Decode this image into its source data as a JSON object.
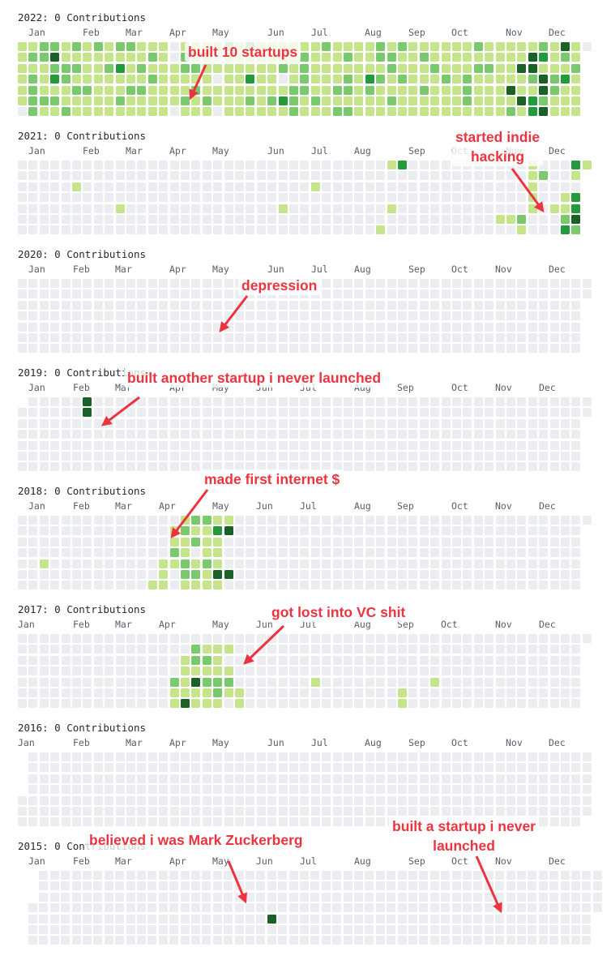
{
  "colors": {
    "empty": "#ebedf0",
    "level1": "#c6e48b",
    "level2": "#7bc96f",
    "level3": "#239a3b",
    "level4": "#196127",
    "annotation": "#ec3340"
  },
  "years": [
    {
      "title": "2022: 0 Contributions",
      "months": [
        "Jan",
        "Feb",
        "Mar",
        "Apr",
        "May",
        "Jun",
        "Jul",
        "Aug",
        "Sep",
        "Oct",
        "Nov",
        "Dec"
      ],
      "weeks": [
        "1111110",
        "1212222",
        "2211121",
        "2423121",
        "1122112",
        "2121211",
        "1111211",
        "2111111",
        "1121111",
        "2131121",
        "2111211",
        "1121211",
        "1212111",
        "1111111",
        "0011110",
        "1221121",
        "1121211",
        "1111121",
        "1010110",
        "2111111",
        "1111111",
        "2113121",
        "1111111",
        "1111121",
        "1120131",
        "1111222",
        "1222211",
        "1111121",
        "2111111",
        "1111212",
        "1212212",
        "1111111",
        "1113211",
        "2212111",
        "1221121",
        "2112111",
        "1111111",
        "1211211",
        "1121111",
        "1112111",
        "1111111",
        "1112221",
        "2121111",
        "1121111",
        "1111111",
        "1111412",
        "1141141",
        "1442133",
        "2314424",
        "1112211",
        "4213111",
        "1121111"
      ],
      "annotations": [
        {
          "lines": [
            "built 10 startups"
          ]
        }
      ]
    },
    {
      "title": "2021: 0 Contributions",
      "months": [
        "Jan",
        "Feb",
        "Mar",
        "Apr",
        "May",
        "Jun",
        "Jul",
        "Aug",
        "Sep",
        "Oct",
        "Nov",
        "Dec"
      ],
      "weeks": [
        "0000000",
        "0000000",
        "0000000",
        "0000000",
        "0000000",
        "0010000",
        "0000000",
        "0000000",
        "0000000",
        "0000100",
        "0000000",
        "0000000",
        "0000000",
        "0000000",
        "0000000",
        "0000000",
        "0000000",
        "0000000",
        "0000000",
        "0000000",
        "0000000",
        "0000000",
        "0000000",
        "0000000",
        "0000100",
        "0000000",
        "0000000",
        "0010000",
        "0000000",
        "0000000",
        "0000000",
        "0000000",
        "0000000",
        "0000001",
        "1000100",
        "3000000",
        "0000000",
        "0000000",
        "0000000",
        "0000000",
        "0000000",
        "0000000",
        "0000000",
        "0000000",
        "0000010",
        "0000010",
        "0000021",
        "1111100",
        "0200000",
        "0000100",
        "0001123",
        "3103342",
        "1011011"
      ],
      "annotations": [
        {
          "lines": [
            "started indie",
            "hacking"
          ]
        }
      ]
    },
    {
      "title": "2020: 0 Contributions",
      "months": [
        "Jan",
        "Feb",
        "Mar",
        "Apr",
        "May",
        "Jun",
        "Jul",
        "Aug",
        "Sep",
        "Oct",
        "Nov",
        "Dec"
      ],
      "weeks": [],
      "annotations": [
        {
          "lines": [
            "depression"
          ]
        }
      ]
    },
    {
      "title": "2019: 0 Contributions",
      "months": [
        "Jan",
        "Feb",
        "Mar",
        "Apr",
        "May",
        "Jun",
        "Jul",
        "Aug",
        "Sep",
        "Oct",
        "Nov",
        "Dec"
      ],
      "weeks": [
        "0000000",
        "0000000",
        "0000000",
        "0000000",
        "0000000",
        "0000000",
        "4400000"
      ],
      "annotations": [
        {
          "lines": [
            "built  another startup i never launched"
          ]
        }
      ]
    },
    {
      "title": "2018: 0 Contributions",
      "months": [
        "Jan",
        "Feb",
        "Mar",
        "Apr",
        "May",
        "Jun",
        "Jul",
        "Aug",
        "Sep",
        "Oct",
        "Nov",
        "Dec"
      ],
      "weeks": [
        "0000000",
        "0000000",
        "0000100",
        "0000000",
        "0000000",
        "0000000",
        "0000000",
        "0000000",
        "0000000",
        "0000000",
        "0000000",
        "0000000",
        "0000001",
        "0000111",
        "0112100",
        "1211221",
        "2120121",
        "2111211",
        "1311141",
        "1400040"
      ],
      "annotations": [
        {
          "lines": [
            "made first internet $"
          ]
        }
      ]
    },
    {
      "title": "2017: 0 Contributions",
      "months": [
        "Jan",
        "Feb",
        "Mar",
        "Apr",
        "May",
        "Jun",
        "Jul",
        "Aug",
        "Sep",
        "Oct",
        "Nov",
        "Dec"
      ],
      "weeks": [
        "0000000",
        "0000000",
        "0000000",
        "0000000",
        "0000000",
        "0000000",
        "0000000",
        "0000000",
        "0000000",
        "0000000",
        "0000000",
        "0000000",
        "0000000",
        "0000000",
        "0000211",
        "0011114",
        "0221411",
        "0121211",
        "0111221",
        "0101210",
        "0000011",
        "0000000",
        "0000000",
        "0000000",
        "0000000",
        "0000000",
        "0000000",
        "0000100",
        "0000000",
        "0000000",
        "0000000",
        "0000000",
        "0000000",
        "0000000",
        "0000000",
        "0000011",
        "0000000",
        "0000000",
        "0000100"
      ],
      "annotations": [
        {
          "lines": [
            "got lost into VC shit"
          ]
        }
      ]
    },
    {
      "title": "2016: 0 Contributions",
      "months": [
        "Jan",
        "Feb",
        "Mar",
        "Apr",
        "May",
        "Jun",
        "Jul",
        "Aug",
        "Sep",
        "Oct",
        "Nov",
        "Dec"
      ],
      "weeks": [],
      "annotations": []
    },
    {
      "title": "2015: 0 Contributions",
      "months": [
        "Jan",
        "Feb",
        "Mar",
        "Apr",
        "May",
        "Jun",
        "Jul",
        "Aug",
        "Sep",
        "Oct",
        "Nov",
        "Dec"
      ],
      "weeks": [
        "0000000",
        "0000000",
        "0000000",
        "0000000",
        "0000000",
        "0000000",
        "0000000",
        "0000000",
        "0000000",
        "0000000",
        "0000000",
        "0000000",
        "0000000",
        "0000000",
        "0000000",
        "0000000",
        "0000000",
        "0000000",
        "0000000",
        "0000000",
        "0000000",
        "0000000",
        "0000400"
      ],
      "annotations": [
        {
          "lines": [
            "believed i was Mark Zuckerberg"
          ]
        },
        {
          "lines": [
            "built a startup i never",
            "launched"
          ]
        }
      ]
    }
  ]
}
